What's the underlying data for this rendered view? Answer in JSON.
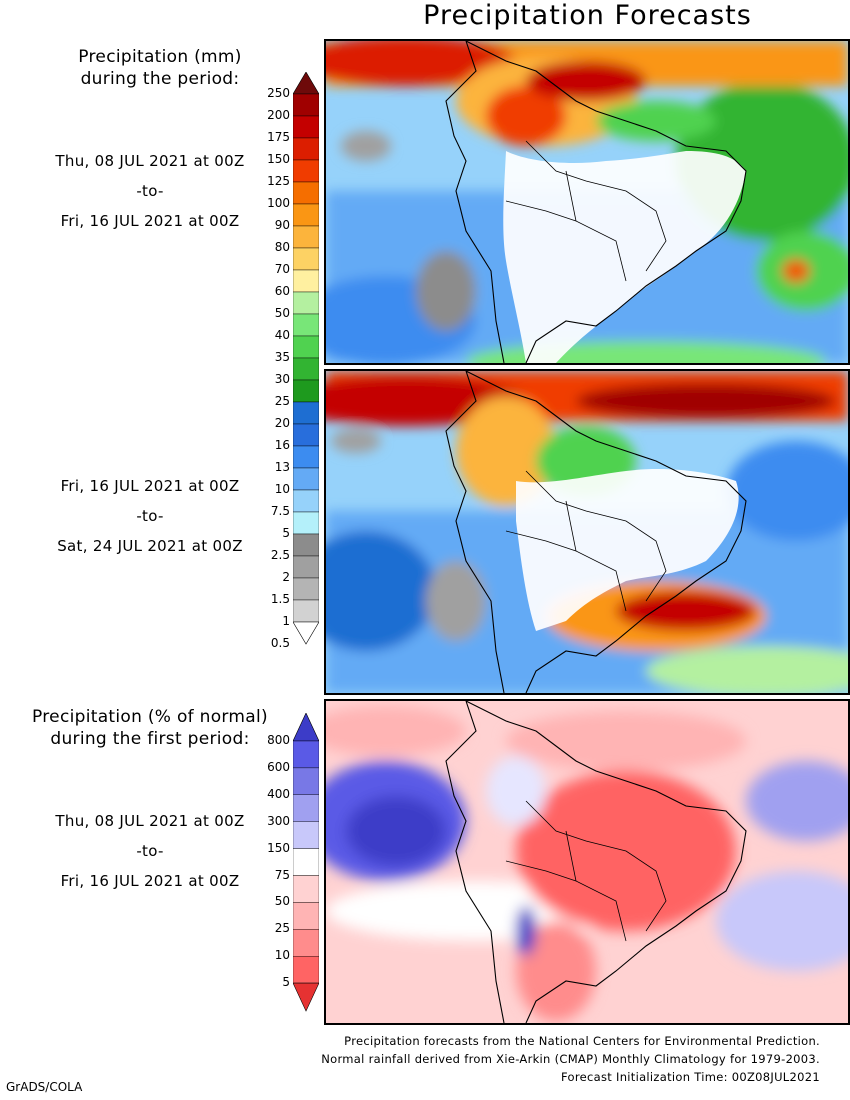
{
  "title": "Precipitation Forecasts",
  "legend_mm": {
    "heading_line1": "Precipitation (mm)",
    "heading_line2": "during the period:",
    "levels": [
      "250",
      "200",
      "175",
      "150",
      "125",
      "100",
      "90",
      "80",
      "70",
      "60",
      "50",
      "40",
      "35",
      "30",
      "25",
      "20",
      "16",
      "13",
      "10",
      "7.5",
      "5",
      "2.5",
      "2",
      "1.5",
      "1",
      "0.5"
    ],
    "colors": [
      "#6e0a0a",
      "#a00000",
      "#c40000",
      "#dc1e00",
      "#f03c00",
      "#f56e00",
      "#fa9614",
      "#fcb43c",
      "#fdd264",
      "#fff0a0",
      "#b4f0a0",
      "#78e678",
      "#50d250",
      "#32b432",
      "#1e9a1e",
      "#1e6ed2",
      "#286edc",
      "#3c8cf0",
      "#64aaf5",
      "#96d2fa",
      "#b4f0fa",
      "#8c8c8c",
      "#a0a0a0",
      "#b4b4b4",
      "#d2d2d2"
    ]
  },
  "legend_pct": {
    "heading_line1": "Precipitation (% of normal)",
    "heading_line2": "during the first period:",
    "levels": [
      "800",
      "600",
      "400",
      "300",
      "150",
      "75",
      "50",
      "25",
      "10",
      "5"
    ],
    "colors": [
      "#5a5ae6",
      "#7878e6",
      "#a0a0f0",
      "#c8c8fa",
      "#ffffff",
      "#ffd2d2",
      "#ffb4b4",
      "#ff8c8c",
      "#ff6464"
    ],
    "top_color": "#3c3cc8",
    "bottom_color": "#e63232"
  },
  "periods": [
    {
      "start": "Thu, 08 JUL 2021 at 00Z",
      "sep": "-to-",
      "end": "Fri, 16 JUL 2021 at 00Z"
    },
    {
      "start": "Fri, 16 JUL 2021 at 00Z",
      "sep": "-to-",
      "end": "Sat, 24 JUL 2021 at 00Z"
    },
    {
      "start": "Thu, 08 JUL 2021 at 00Z",
      "sep": "-to-",
      "end": "Fri, 16 JUL 2021 at 00Z"
    }
  ],
  "credits": {
    "line1": "Precipitation forecasts from the National Centers for Environmental Prediction.",
    "line2": "Normal rainfall derived from Xie-Arkin (CMAP) Monthly Climatology for 1979-2003.",
    "line3": "Forecast Initialization Time: 00Z08JUL2021"
  },
  "footer": "GrADS/COLA"
}
